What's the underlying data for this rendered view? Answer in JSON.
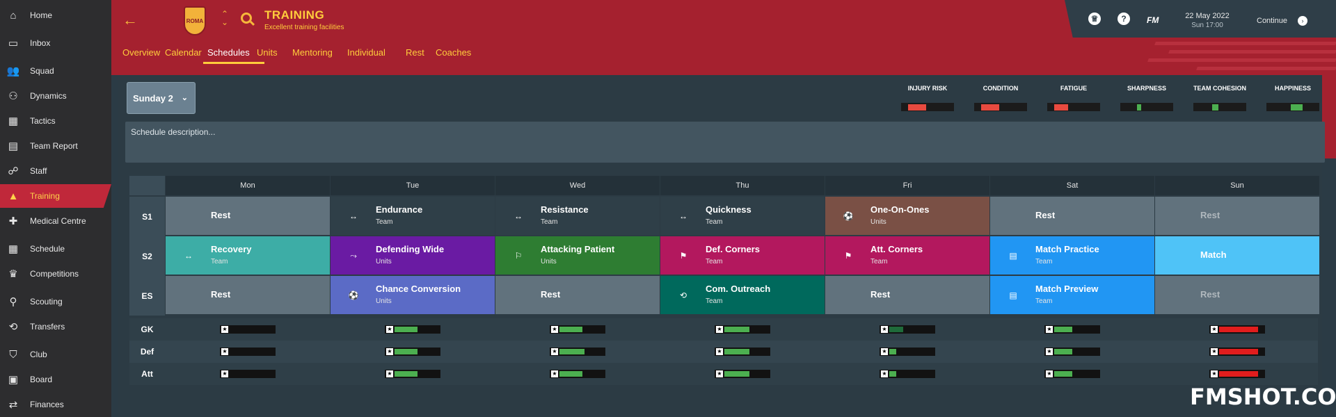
{
  "sidebar": {
    "items": [
      {
        "label": "Home",
        "icon": "home-icon",
        "glyph": "⌂"
      },
      {
        "label": "Inbox",
        "icon": "inbox-icon",
        "glyph": "▭"
      },
      {
        "label": "Squad",
        "icon": "squad-icon",
        "glyph": "👥"
      },
      {
        "label": "Dynamics",
        "icon": "dynamics-icon",
        "glyph": "⚇"
      },
      {
        "label": "Tactics",
        "icon": "tactics-icon",
        "glyph": "▦"
      },
      {
        "label": "Team Report",
        "icon": "report-icon",
        "glyph": "▤"
      },
      {
        "label": "Staff",
        "icon": "staff-icon",
        "glyph": "☍"
      },
      {
        "label": "Training",
        "icon": "training-icon",
        "glyph": "▲"
      },
      {
        "label": "Medical Centre",
        "icon": "medical-icon",
        "glyph": "✚"
      },
      {
        "label": "Schedule",
        "icon": "calendar-icon",
        "glyph": "▦"
      },
      {
        "label": "Competitions",
        "icon": "trophy-icon",
        "glyph": "♛"
      },
      {
        "label": "Scouting",
        "icon": "scouting-icon",
        "glyph": "⚲"
      },
      {
        "label": "Transfers",
        "icon": "transfers-icon",
        "glyph": "⟲"
      },
      {
        "label": "Club",
        "icon": "club-icon",
        "glyph": "⛉"
      },
      {
        "label": "Board",
        "icon": "board-icon",
        "glyph": "▣"
      },
      {
        "label": "Finances",
        "icon": "finances-icon",
        "glyph": "⇄"
      }
    ]
  },
  "header": {
    "title": "TRAINING",
    "subtitle": "Excellent training facilities",
    "crest_text": "ROMA",
    "tabs": [
      "Overview",
      "Calendar",
      "Schedules",
      "Units",
      "Mentoring",
      "Individual",
      "Rest",
      "Coaches"
    ],
    "active_tab": "Schedules"
  },
  "topbar": {
    "fm_label": "FM",
    "date": "22 May 2022",
    "time": "Sun 17:00",
    "continue_label": "Continue",
    "help_glyph": "?",
    "continue_glyph": "›"
  },
  "schedule": {
    "selected_day": "Sunday 2",
    "description_placeholder": "Schedule description..."
  },
  "stats": [
    {
      "label": "INJURY RISK",
      "level": 0.36,
      "color": "#e84a3f"
    },
    {
      "label": "CONDITION",
      "level": 0.36,
      "color": "#e84a3f"
    },
    {
      "label": "FATIGUE",
      "level": 0.28,
      "color": "#e84a3f"
    },
    {
      "label": "SHARPNESS",
      "level": 0.09,
      "color": "#4caf50"
    },
    {
      "label": "TEAM COHESION",
      "level": 0.13,
      "color": "#4caf50"
    },
    {
      "label": "HAPPINESS",
      "level": 0.24,
      "color": "#4caf50"
    }
  ],
  "days": [
    "Mon",
    "Tue",
    "Wed",
    "Thu",
    "Fri",
    "Sat",
    "Sun"
  ],
  "sessions": [
    {
      "row": "S1",
      "cells": [
        {
          "title": "Rest",
          "sub": "",
          "icon": "",
          "color": "#61727d"
        },
        {
          "title": "Endurance",
          "sub": "Team",
          "icon": "dumbbell-icon",
          "glyph": "↔",
          "color": "#2f3f48"
        },
        {
          "title": "Resistance",
          "sub": "Team",
          "icon": "dumbbell-icon",
          "glyph": "↔",
          "color": "#2f3f48"
        },
        {
          "title": "Quickness",
          "sub": "Team",
          "icon": "dumbbell-icon",
          "glyph": "↔",
          "color": "#2f3f48"
        },
        {
          "title": "One-On-Ones",
          "sub": "Units",
          "icon": "one-on-one-icon",
          "glyph": "⚽",
          "color": "#7a5045"
        },
        {
          "title": "Rest",
          "sub": "",
          "icon": "",
          "color": "#61727d"
        },
        {
          "title": "Rest",
          "sub": "",
          "icon": "",
          "color": "#61727d",
          "dim": true
        }
      ]
    },
    {
      "row": "S2",
      "cells": [
        {
          "title": "Recovery",
          "sub": "Team",
          "icon": "recovery-icon",
          "glyph": "↔",
          "color": "#3dada6"
        },
        {
          "title": "Defending Wide",
          "sub": "Units",
          "icon": "defending-icon",
          "glyph": "⤳",
          "color": "#6a1ba3"
        },
        {
          "title": "Attacking Patient",
          "sub": "Units",
          "icon": "attacking-icon",
          "glyph": "⚐",
          "color": "#2e7d32"
        },
        {
          "title": "Def. Corners",
          "sub": "Team",
          "icon": "set-piece-icon",
          "glyph": "⚑",
          "color": "#b3185e"
        },
        {
          "title": "Att. Corners",
          "sub": "Team",
          "icon": "set-piece-icon",
          "glyph": "⚑",
          "color": "#b3185e"
        },
        {
          "title": "Match Practice",
          "sub": "Team",
          "icon": "match-icon",
          "glyph": "▤",
          "color": "#2196f3"
        },
        {
          "title": "Match",
          "sub": "",
          "icon": "",
          "color": "#4fc3f7"
        }
      ]
    },
    {
      "row": "ES",
      "cells": [
        {
          "title": "Rest",
          "sub": "",
          "icon": "",
          "color": "#61727d"
        },
        {
          "title": "Chance Conversion",
          "sub": "Units",
          "icon": "shooting-icon",
          "glyph": "⚽",
          "color": "#5b6bc6"
        },
        {
          "title": "Rest",
          "sub": "",
          "icon": "",
          "color": "#61727d"
        },
        {
          "title": "Com. Outreach",
          "sub": "Team",
          "icon": "outreach-icon",
          "glyph": "⟲",
          "color": "#00695c"
        },
        {
          "title": "Rest",
          "sub": "",
          "icon": "",
          "color": "#61727d"
        },
        {
          "title": "Match Preview",
          "sub": "Team",
          "icon": "match-icon",
          "glyph": "▤",
          "color": "#2196f3"
        },
        {
          "title": "Rest",
          "sub": "",
          "icon": "",
          "color": "#61727d",
          "dim": true
        }
      ]
    }
  ],
  "positions": [
    {
      "label": "GK",
      "loads": [
        0,
        0.5,
        0.5,
        0.55,
        0.3,
        0.4,
        0.85
      ],
      "colors": [
        "#000000",
        "#4caf50",
        "#4caf50",
        "#4caf50",
        "#1f6b3a",
        "#4caf50",
        "#e11d1d"
      ]
    },
    {
      "label": "Def",
      "loads": [
        0,
        0.5,
        0.55,
        0.55,
        0.15,
        0.4,
        0.85
      ],
      "colors": [
        "#000000",
        "#4caf50",
        "#4caf50",
        "#4caf50",
        "#4caf50",
        "#4caf50",
        "#e11d1d"
      ]
    },
    {
      "label": "Att",
      "loads": [
        0,
        0.5,
        0.5,
        0.55,
        0.15,
        0.4,
        0.85
      ],
      "colors": [
        "#000000",
        "#4caf50",
        "#4caf50",
        "#4caf50",
        "#4caf50",
        "#4caf50",
        "#e11d1d"
      ]
    }
  ],
  "star_glyph": "★",
  "watermark": "FMSHOT.COM"
}
